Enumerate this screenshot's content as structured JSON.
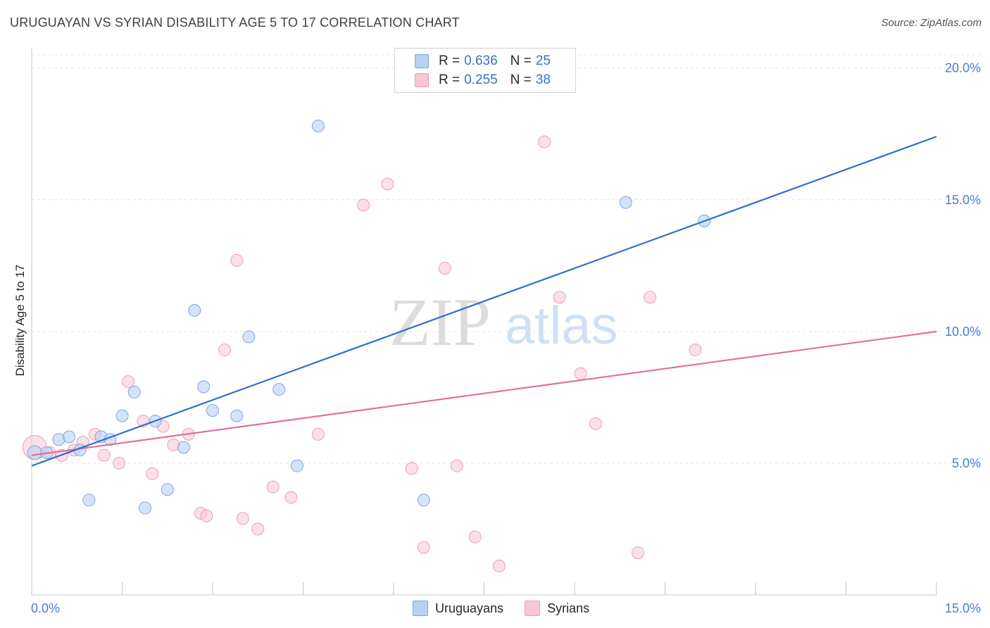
{
  "header": {
    "title": "URUGUAYAN VS SYRIAN DISABILITY AGE 5 TO 17 CORRELATION CHART",
    "source": "Source: ZipAtlas.com"
  },
  "watermark": {
    "zip": "ZIP",
    "atlas": "atlas"
  },
  "legend_top": {
    "rows": [
      {
        "r_label": "R =",
        "r_value": "0.636",
        "n_label": "N =",
        "n_value": "25"
      },
      {
        "r_label": "R =",
        "r_value": "0.255",
        "n_label": "N =",
        "n_value": "38"
      }
    ]
  },
  "legend_bottom": {
    "series1": "Uruguayans",
    "series2": "Syrians"
  },
  "chart_data": {
    "type": "scatter",
    "title": "URUGUAYAN VS SYRIAN DISABILITY AGE 5 TO 17 CORRELATION CHART",
    "xlabel": "",
    "ylabel": "Disability Age 5 to 17",
    "xlim": [
      0,
      15
    ],
    "ylim": [
      0,
      20.5
    ],
    "x_tick_labels": [
      "0.0%",
      "15.0%"
    ],
    "y_ticks": [
      5,
      10,
      15,
      20
    ],
    "y_tick_labels": [
      "5.0%",
      "10.0%",
      "15.0%",
      "20.0%"
    ],
    "grid": true,
    "legend_position": "top-center",
    "colors": {
      "uruguayans_fill": "#b8d1f3",
      "uruguayans_stroke": "#7ea6e0",
      "uruguayans_line": "#2f6fce",
      "syrians_fill": "#f8c6d4",
      "syrians_stroke": "#ec9fb6",
      "syrians_line": "#e0709a"
    },
    "series": [
      {
        "name": "Uruguayans",
        "R": 0.636,
        "N": 25,
        "trend": {
          "x": [
            0,
            15
          ],
          "y": [
            4.9,
            17.4
          ]
        },
        "points": [
          {
            "x": 0.05,
            "y": 5.4
          },
          {
            "x": 0.25,
            "y": 5.4
          },
          {
            "x": 0.45,
            "y": 5.9
          },
          {
            "x": 0.62,
            "y": 6.0
          },
          {
            "x": 0.8,
            "y": 5.5
          },
          {
            "x": 0.95,
            "y": 3.6
          },
          {
            "x": 1.15,
            "y": 6.0
          },
          {
            "x": 1.3,
            "y": 5.9
          },
          {
            "x": 1.5,
            "y": 6.8
          },
          {
            "x": 1.7,
            "y": 7.7
          },
          {
            "x": 1.88,
            "y": 3.3
          },
          {
            "x": 2.05,
            "y": 6.6
          },
          {
            "x": 2.25,
            "y": 4.0
          },
          {
            "x": 2.52,
            "y": 5.6
          },
          {
            "x": 2.7,
            "y": 10.8
          },
          {
            "x": 2.85,
            "y": 7.9
          },
          {
            "x": 3.0,
            "y": 7.0
          },
          {
            "x": 3.4,
            "y": 6.8
          },
          {
            "x": 3.6,
            "y": 9.8
          },
          {
            "x": 4.1,
            "y": 7.8
          },
          {
            "x": 4.4,
            "y": 4.9
          },
          {
            "x": 4.75,
            "y": 17.8
          },
          {
            "x": 6.5,
            "y": 3.6
          },
          {
            "x": 9.85,
            "y": 14.9
          },
          {
            "x": 11.15,
            "y": 14.2
          }
        ]
      },
      {
        "name": "Syrians",
        "R": 0.255,
        "N": 38,
        "trend": {
          "x": [
            0,
            15
          ],
          "y": [
            5.3,
            10.0
          ]
        },
        "points": [
          {
            "x": 0.05,
            "y": 5.6
          },
          {
            "x": 0.3,
            "y": 5.4
          },
          {
            "x": 0.5,
            "y": 5.3
          },
          {
            "x": 0.7,
            "y": 5.5
          },
          {
            "x": 0.85,
            "y": 5.8
          },
          {
            "x": 1.05,
            "y": 6.1
          },
          {
            "x": 1.2,
            "y": 5.3
          },
          {
            "x": 1.45,
            "y": 5.0
          },
          {
            "x": 1.6,
            "y": 8.1
          },
          {
            "x": 1.85,
            "y": 6.6
          },
          {
            "x": 2.0,
            "y": 4.6
          },
          {
            "x": 2.18,
            "y": 6.4
          },
          {
            "x": 2.35,
            "y": 5.7
          },
          {
            "x": 2.6,
            "y": 6.1
          },
          {
            "x": 2.8,
            "y": 3.1
          },
          {
            "x": 2.9,
            "y": 3.0
          },
          {
            "x": 3.2,
            "y": 9.3
          },
          {
            "x": 3.4,
            "y": 12.7
          },
          {
            "x": 3.5,
            "y": 2.9
          },
          {
            "x": 3.75,
            "y": 2.5
          },
          {
            "x": 4.0,
            "y": 4.1
          },
          {
            "x": 4.3,
            "y": 3.7
          },
          {
            "x": 4.75,
            "y": 6.1
          },
          {
            "x": 5.5,
            "y": 14.8
          },
          {
            "x": 5.9,
            "y": 15.6
          },
          {
            "x": 6.3,
            "y": 4.8
          },
          {
            "x": 6.5,
            "y": 1.8
          },
          {
            "x": 6.85,
            "y": 12.4
          },
          {
            "x": 7.05,
            "y": 4.9
          },
          {
            "x": 7.35,
            "y": 2.2
          },
          {
            "x": 7.75,
            "y": 1.1
          },
          {
            "x": 8.5,
            "y": 17.2
          },
          {
            "x": 8.75,
            "y": 11.3
          },
          {
            "x": 9.1,
            "y": 8.4
          },
          {
            "x": 9.35,
            "y": 6.5
          },
          {
            "x": 10.05,
            "y": 1.6
          },
          {
            "x": 10.25,
            "y": 11.3
          },
          {
            "x": 11.0,
            "y": 9.3
          }
        ]
      }
    ]
  }
}
